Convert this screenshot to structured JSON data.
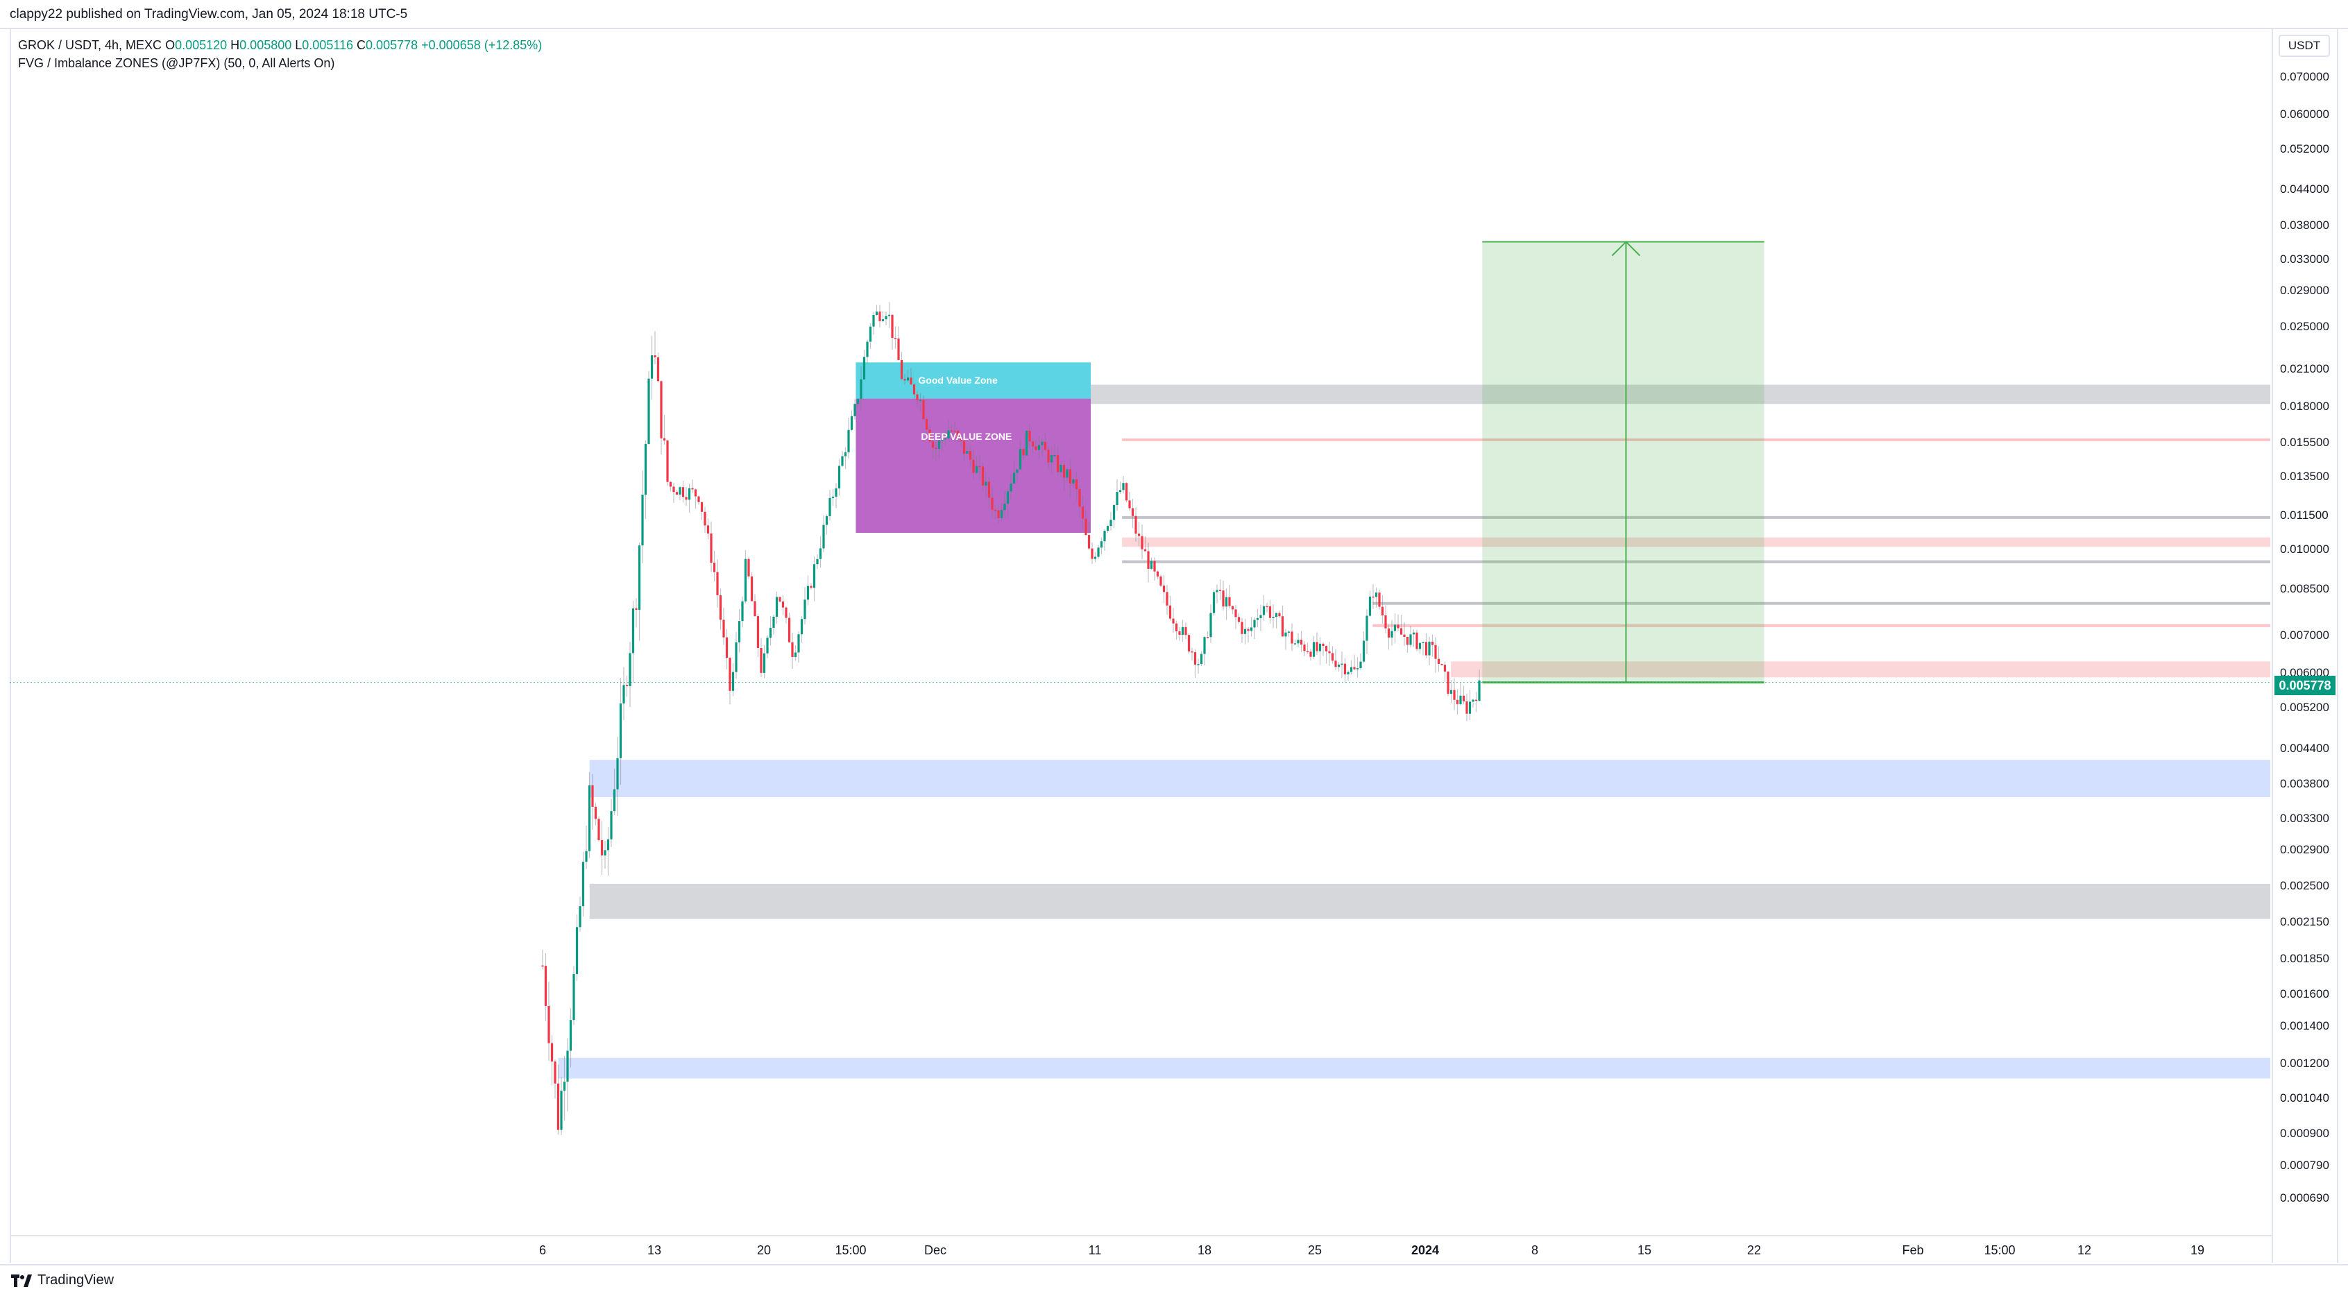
{
  "header": {
    "published": "clappy22 published on TradingView.com, Jan 05, 2024 18:18 UTC-5"
  },
  "legend": {
    "symbol": "GROK / USDT, 4h, MEXC",
    "open_label": "O",
    "open": "0.005120",
    "high_label": "H",
    "high": "0.005800",
    "low_label": "L",
    "low": "0.005116",
    "close_label": "C",
    "close": "0.005778",
    "change": "+0.000658 (+12.85%)",
    "indicator": "FVG / Imbalance ZONES (@JP7FX) (50, 0, All Alerts On)"
  },
  "price_axis": {
    "currency": "USDT",
    "last_price": "0.005778",
    "labels": [
      "0.070000",
      "0.060000",
      "0.052000",
      "0.044000",
      "0.038000",
      "0.033000",
      "0.029000",
      "0.025000",
      "0.021000",
      "0.018000",
      "0.015500",
      "0.013500",
      "0.011500",
      "0.010000",
      "0.008500",
      "0.007000",
      "0.006000",
      "0.005200",
      "0.004400",
      "0.003800",
      "0.003300",
      "0.002900",
      "0.002500",
      "0.002150",
      "0.001850",
      "0.001600",
      "0.001400",
      "0.001200",
      "0.001040",
      "0.000900",
      "0.000790",
      "0.000690"
    ]
  },
  "time_axis": {
    "labels": [
      {
        "text": "6",
        "bold": false
      },
      {
        "text": "13",
        "bold": false
      },
      {
        "text": "20",
        "bold": false
      },
      {
        "text": "15:00",
        "bold": false
      },
      {
        "text": "Dec",
        "bold": false
      },
      {
        "text": "11",
        "bold": false
      },
      {
        "text": "18",
        "bold": false
      },
      {
        "text": "25",
        "bold": false
      },
      {
        "text": "2024",
        "bold": true
      },
      {
        "text": "8",
        "bold": false
      },
      {
        "text": "15",
        "bold": false
      },
      {
        "text": "22",
        "bold": false
      },
      {
        "text": "Feb",
        "bold": false
      },
      {
        "text": "15:00",
        "bold": false
      },
      {
        "text": "12",
        "bold": false
      },
      {
        "text": "19",
        "bold": false
      }
    ]
  },
  "zones": {
    "good_value_label": "Good Value Zone",
    "deep_value_label": "DEEP VALUE ZONE"
  },
  "chart_data": {
    "type": "candlestick",
    "symbol": "GROK / USDT",
    "timeframe": "4h",
    "exchange": "MEXC",
    "scale": "log",
    "price_range": [
      0.00065,
      0.075
    ],
    "price_path": [
      {
        "date": "Nov 06",
        "price": 0.0018
      },
      {
        "date": "Nov 07",
        "price": 0.00095
      },
      {
        "date": "Nov 08",
        "price": 0.0017
      },
      {
        "date": "Nov 09",
        "price": 0.0036
      },
      {
        "date": "Nov 10",
        "price": 0.0027
      },
      {
        "date": "Nov 11",
        "price": 0.005
      },
      {
        "date": "Nov 12",
        "price": 0.0085
      },
      {
        "date": "Nov 13",
        "price": 0.024
      },
      {
        "date": "Nov 14",
        "price": 0.013
      },
      {
        "date": "Nov 16",
        "price": 0.0125
      },
      {
        "date": "Nov 17",
        "price": 0.009
      },
      {
        "date": "Nov 18",
        "price": 0.0055
      },
      {
        "date": "Nov 19",
        "price": 0.0095
      },
      {
        "date": "Nov 20",
        "price": 0.006
      },
      {
        "date": "Nov 21",
        "price": 0.0085
      },
      {
        "date": "Nov 22",
        "price": 0.0065
      },
      {
        "date": "Nov 24",
        "price": 0.011
      },
      {
        "date": "Nov 26",
        "price": 0.018
      },
      {
        "date": "Nov 27",
        "price": 0.026
      },
      {
        "date": "Nov 28",
        "price": 0.027
      },
      {
        "date": "Nov 29",
        "price": 0.02
      },
      {
        "date": "Nov 30",
        "price": 0.019
      },
      {
        "date": "Dec 01",
        "price": 0.015
      },
      {
        "date": "Dec 02",
        "price": 0.0165
      },
      {
        "date": "Dec 04",
        "price": 0.0135
      },
      {
        "date": "Dec 05",
        "price": 0.0115
      },
      {
        "date": "Dec 07",
        "price": 0.016
      },
      {
        "date": "Dec 08",
        "price": 0.015
      },
      {
        "date": "Dec 10",
        "price": 0.013
      },
      {
        "date": "Dec 11",
        "price": 0.0095
      },
      {
        "date": "Dec 13",
        "price": 0.013
      },
      {
        "date": "Dec 14",
        "price": 0.0105
      },
      {
        "date": "Dec 16",
        "price": 0.0078
      },
      {
        "date": "Dec 18",
        "price": 0.0062
      },
      {
        "date": "Dec 19",
        "price": 0.0085
      },
      {
        "date": "Dec 21",
        "price": 0.007
      },
      {
        "date": "Dec 22",
        "price": 0.008
      },
      {
        "date": "Dec 24",
        "price": 0.0068
      },
      {
        "date": "Dec 26",
        "price": 0.0065
      },
      {
        "date": "Dec 28",
        "price": 0.006
      },
      {
        "date": "Dec 29",
        "price": 0.0085
      },
      {
        "date": "Dec 30",
        "price": 0.0072
      },
      {
        "date": "Jan 01",
        "price": 0.0068
      },
      {
        "date": "Jan 02",
        "price": 0.0065
      },
      {
        "date": "Jan 03",
        "price": 0.0055
      },
      {
        "date": "Jan 04",
        "price": 0.0052
      },
      {
        "date": "Jan 05",
        "price": 0.00578
      }
    ],
    "last": {
      "open": 0.00512,
      "high": 0.0058,
      "low": 0.005116,
      "close": 0.005778,
      "change": 0.000658,
      "change_pct": 12.85
    },
    "zones": [
      {
        "name": "Good Value Zone",
        "kind": "cyan",
        "price_low": 0.0186,
        "price_high": 0.0216,
        "start": "Nov 26",
        "end": "Dec 11"
      },
      {
        "name": "DEEP VALUE ZONE",
        "kind": "purple",
        "price_low": 0.0107,
        "price_high": 0.0186,
        "start": "Nov 26",
        "end": "Dec 11"
      },
      {
        "kind": "gray",
        "price_low": 0.0182,
        "price_high": 0.0197,
        "start": "Dec 11",
        "end": "right-edge"
      },
      {
        "kind": "pink-line",
        "price": 0.0157,
        "start": "Dec 13",
        "end": "right-edge"
      },
      {
        "kind": "gray-line",
        "price": 0.0114,
        "start": "Dec 13",
        "end": "right-edge"
      },
      {
        "kind": "pink",
        "price_low": 0.0101,
        "price_high": 0.0105,
        "start": "Dec 13",
        "end": "right-edge"
      },
      {
        "kind": "gray-line",
        "price": 0.0095,
        "start": "Dec 13",
        "end": "right-edge"
      },
      {
        "kind": "gray-line",
        "price": 0.008,
        "start": "Dec 29",
        "end": "right-edge"
      },
      {
        "kind": "pink-line",
        "price": 0.0073,
        "start": "Dec 29",
        "end": "right-edge"
      },
      {
        "kind": "pink",
        "price_low": 0.0059,
        "price_high": 0.0063,
        "start": "Jan 03",
        "end": "right-edge"
      },
      {
        "kind": "blue",
        "price_low": 0.0036,
        "price_high": 0.0042,
        "start": "Nov 09",
        "end": "right-edge"
      },
      {
        "kind": "gray",
        "price_low": 0.00218,
        "price_high": 0.00252,
        "start": "Nov 09",
        "end": "right-edge"
      },
      {
        "kind": "blue",
        "price_low": 0.00113,
        "price_high": 0.00123,
        "start": "Nov 07",
        "end": "right-edge"
      }
    ],
    "long_position": {
      "entry": 0.005778,
      "target": 0.0355,
      "start": "Jan 05",
      "end": "Jan 23"
    }
  }
}
